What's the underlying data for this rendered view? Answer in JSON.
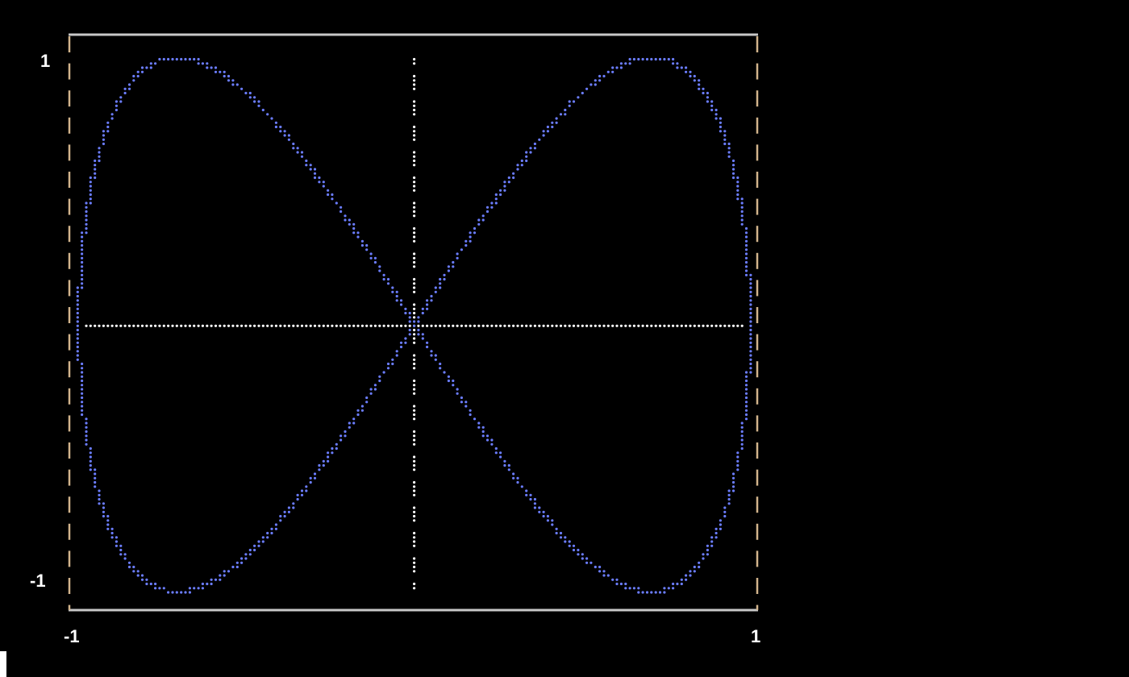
{
  "chart_data": {
    "type": "line",
    "title": "",
    "xlabel": "",
    "ylabel": "",
    "xlim": [
      -1,
      1
    ],
    "ylim": [
      -1,
      1
    ],
    "x_ticks": [
      "-1",
      "1"
    ],
    "y_ticks": [
      "1",
      "-1"
    ],
    "grid": false,
    "axes_lines_at_zero": true,
    "colors": {
      "series": "#6b7dff",
      "axes": "#ffffff",
      "frame": "#c8c8c8",
      "frame_side": "#d2b48c",
      "background": "#000000"
    },
    "series": [
      {
        "x": [
          0,
          0.195,
          0.383,
          0.556,
          0.707,
          0.831,
          0.924,
          0.981,
          1,
          0.981,
          0.924,
          0.831,
          0.707,
          0.556,
          0.383,
          0.195,
          0,
          -0.195,
          -0.383,
          -0.556,
          -0.707,
          -0.831,
          -0.924,
          -0.981,
          -1,
          -0.981,
          -0.924,
          -0.831,
          -0.707,
          -0.556,
          -0.383,
          -0.195,
          0
        ],
        "y": [
          0,
          0.383,
          0.707,
          0.924,
          1,
          0.924,
          0.707,
          0.383,
          0,
          -0.383,
          -0.707,
          -0.924,
          -1,
          -0.924,
          -0.707,
          -0.383,
          0,
          0.383,
          0.707,
          0.924,
          1,
          0.924,
          0.707,
          0.383,
          0,
          -0.383,
          -0.707,
          -0.924,
          -1,
          -0.924,
          -0.707,
          -0.383,
          0
        ]
      }
    ]
  }
}
